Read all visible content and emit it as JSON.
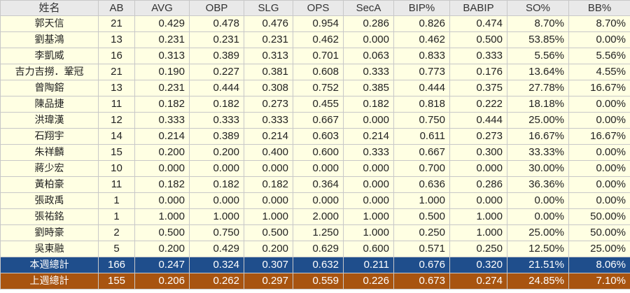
{
  "columns": [
    "姓名",
    "AB",
    "AVG",
    "OBP",
    "SLG",
    "OPS",
    "SecA",
    "BIP%",
    "BABIP",
    "SO%",
    "BB%"
  ],
  "rows": [
    [
      "郭天信",
      "21",
      "0.429",
      "0.478",
      "0.476",
      "0.954",
      "0.286",
      "0.826",
      "0.474",
      "8.70%",
      "8.70%"
    ],
    [
      "劉基鴻",
      "13",
      "0.231",
      "0.231",
      "0.231",
      "0.462",
      "0.000",
      "0.462",
      "0.500",
      "53.85%",
      "0.00%"
    ],
    [
      "李凱威",
      "16",
      "0.313",
      "0.389",
      "0.313",
      "0.701",
      "0.063",
      "0.833",
      "0.333",
      "5.56%",
      "5.56%"
    ],
    [
      "吉力吉撈．鞏冠",
      "21",
      "0.190",
      "0.227",
      "0.381",
      "0.608",
      "0.333",
      "0.773",
      "0.176",
      "13.64%",
      "4.55%"
    ],
    [
      "曾陶鎔",
      "13",
      "0.231",
      "0.444",
      "0.308",
      "0.752",
      "0.385",
      "0.444",
      "0.375",
      "27.78%",
      "16.67%"
    ],
    [
      "陳品捷",
      "11",
      "0.182",
      "0.182",
      "0.273",
      "0.455",
      "0.182",
      "0.818",
      "0.222",
      "18.18%",
      "0.00%"
    ],
    [
      "洪瑋漢",
      "12",
      "0.333",
      "0.333",
      "0.333",
      "0.667",
      "0.000",
      "0.750",
      "0.444",
      "25.00%",
      "0.00%"
    ],
    [
      "石翔宇",
      "14",
      "0.214",
      "0.389",
      "0.214",
      "0.603",
      "0.214",
      "0.611",
      "0.273",
      "16.67%",
      "16.67%"
    ],
    [
      "朱祥麟",
      "15",
      "0.200",
      "0.200",
      "0.400",
      "0.600",
      "0.333",
      "0.667",
      "0.300",
      "33.33%",
      "0.00%"
    ],
    [
      "蔣少宏",
      "10",
      "0.000",
      "0.000",
      "0.000",
      "0.000",
      "0.000",
      "0.700",
      "0.000",
      "30.00%",
      "0.00%"
    ],
    [
      "黃柏豪",
      "11",
      "0.182",
      "0.182",
      "0.182",
      "0.364",
      "0.000",
      "0.636",
      "0.286",
      "36.36%",
      "0.00%"
    ],
    [
      "張政禹",
      "1",
      "0.000",
      "0.000",
      "0.000",
      "0.000",
      "0.000",
      "1.000",
      "0.000",
      "0.00%",
      "0.00%"
    ],
    [
      "張祐銘",
      "1",
      "1.000",
      "1.000",
      "1.000",
      "2.000",
      "1.000",
      "0.500",
      "1.000",
      "0.00%",
      "50.00%"
    ],
    [
      "劉時豪",
      "2",
      "0.500",
      "0.750",
      "0.500",
      "1.250",
      "1.000",
      "0.250",
      "1.000",
      "25.00%",
      "50.00%"
    ],
    [
      "吳東融",
      "5",
      "0.200",
      "0.429",
      "0.200",
      "0.629",
      "0.600",
      "0.571",
      "0.250",
      "12.50%",
      "25.00%"
    ]
  ],
  "totals": [
    {
      "key": "this_week",
      "cells": [
        "本週總計",
        "166",
        "0.247",
        "0.324",
        "0.307",
        "0.632",
        "0.211",
        "0.676",
        "0.320",
        "21.51%",
        "8.06%"
      ]
    },
    {
      "key": "last_week",
      "cells": [
        "上週總計",
        "155",
        "0.206",
        "0.262",
        "0.297",
        "0.559",
        "0.226",
        "0.673",
        "0.274",
        "24.85%",
        "7.10%"
      ]
    }
  ],
  "colors": {
    "header_bg": "#e9e9e9",
    "row_bg": "#ffffe3",
    "this_week_bg": "#1f4e8c",
    "last_week_bg": "#a85410"
  }
}
